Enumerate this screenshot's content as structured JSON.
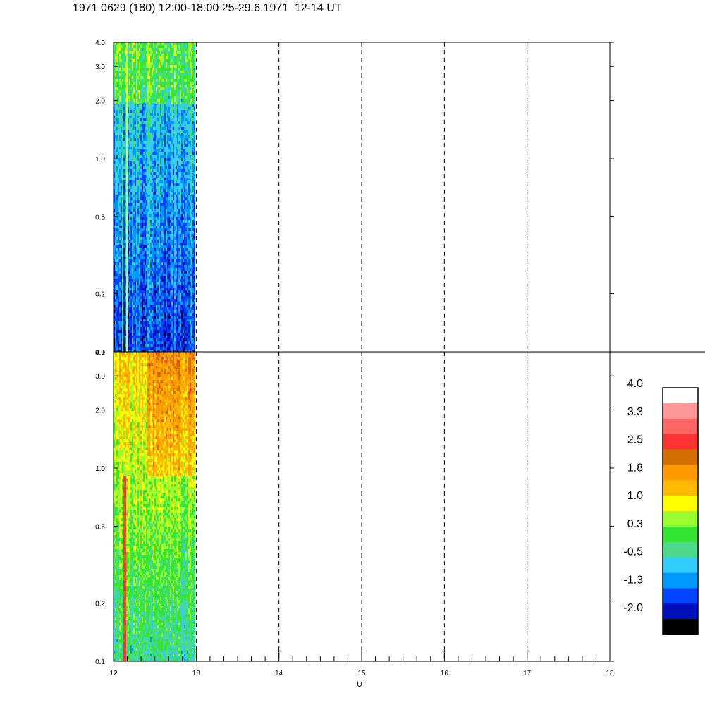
{
  "title": "1971 0629 (180) 12:00-18:00 25-29.6.1971  12-14 UT",
  "colors": {
    "frame": "#000000",
    "background": "#ffffff"
  },
  "chart_data": [
    {
      "type": "heatmap",
      "panel": "top",
      "x": {
        "range": [
          12,
          18
        ],
        "data_extent": [
          12,
          13
        ],
        "grid": [
          13,
          14,
          15,
          16,
          17
        ],
        "grid_style": "dashed"
      },
      "y": {
        "range": [
          0.1,
          4.0
        ],
        "scale": "log",
        "ticks": [
          0.1,
          0.2,
          0.5,
          1.0,
          2.0,
          3.0,
          4.0
        ],
        "tick_labels": [
          "0.1",
          "0.2",
          "0.5",
          "1.0",
          "2.0",
          "3.0",
          "4.0"
        ]
      },
      "dominant_values": "blue / cyan (-1.5 to -0.5), green above 2.0, one bright streak near 12.15 UT"
    },
    {
      "type": "heatmap",
      "panel": "bottom",
      "x": {
        "range": [
          12,
          18
        ],
        "data_extent": [
          12,
          13
        ],
        "grid": [
          13,
          14,
          15,
          16,
          17
        ],
        "grid_style": "dashed",
        "ticks": [
          12,
          13,
          14,
          15,
          16,
          17,
          18
        ],
        "tick_labels": [
          "12",
          "13",
          "14",
          "15",
          "16",
          "17",
          "18"
        ],
        "label": "UT"
      },
      "y": {
        "range": [
          0.1,
          4.0
        ],
        "scale": "log",
        "ticks": [
          0.1,
          0.2,
          0.5,
          1.0,
          2.0,
          3.0,
          4.0
        ],
        "tick_labels": [
          "0.1",
          "0.2",
          "0.5",
          "1.0",
          "2.0",
          "3.0",
          "4.0"
        ]
      },
      "dominant_values": "green (0.3) low, yellow / orange (1.0 - 1.8) above 1.0, red streak near 12.12 UT"
    }
  ],
  "colorbar": {
    "labels": [
      "4.0",
      "3.3",
      "2.5",
      "1.8",
      "1.0",
      "0.3",
      "-0.5",
      "-1.3",
      "-2.0"
    ],
    "colors": [
      "#ffffff",
      "#ff9999",
      "#ff6666",
      "#ff3333",
      "#d27000",
      "#ff9900",
      "#ffb900",
      "#ffff00",
      "#99ff33",
      "#33e633",
      "#4dd88a",
      "#33ccff",
      "#0099ff",
      "#0044ff",
      "#0011bb",
      "#000000"
    ]
  }
}
